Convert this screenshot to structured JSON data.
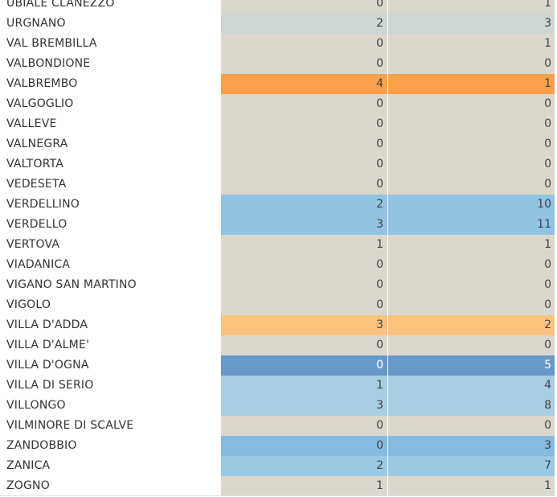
{
  "chart_data": {
    "type": "table",
    "columns": [
      "",
      "",
      ""
    ],
    "rows": [
      {
        "comune": "UBIALE CLANEZZO",
        "v1": 0,
        "v2": 1,
        "color": "#dcd7cc"
      },
      {
        "comune": "URGNANO",
        "v1": 2,
        "v2": 3,
        "color": "#cdd6d2"
      },
      {
        "comune": "VAL BREMBILLA",
        "v1": 0,
        "v2": 1,
        "color": "#dcd7cc"
      },
      {
        "comune": "VALBONDIONE",
        "v1": 0,
        "v2": 0,
        "color": "#dcd7cc"
      },
      {
        "comune": "VALBREMBO",
        "v1": 4,
        "v2": 1,
        "color": "#f9a04a"
      },
      {
        "comune": "VALGOGLIO",
        "v1": 0,
        "v2": 0,
        "color": "#dcd7cc"
      },
      {
        "comune": "VALLEVE",
        "v1": 0,
        "v2": 0,
        "color": "#dcd7cc"
      },
      {
        "comune": "VALNEGRA",
        "v1": 0,
        "v2": 0,
        "color": "#dcd7cc"
      },
      {
        "comune": "VALTORTA",
        "v1": 0,
        "v2": 0,
        "color": "#dcd7cc"
      },
      {
        "comune": "VEDESETA",
        "v1": 0,
        "v2": 0,
        "color": "#dcd7cc"
      },
      {
        "comune": "VERDELLINO",
        "v1": 2,
        "v2": 10,
        "color": "#92c3e2"
      },
      {
        "comune": "VERDELLO",
        "v1": 3,
        "v2": 11,
        "color": "#92c3e2"
      },
      {
        "comune": "VERTOVA",
        "v1": 1,
        "v2": 1,
        "color": "#dcd7cc"
      },
      {
        "comune": "VIADANICA",
        "v1": 0,
        "v2": 0,
        "color": "#dcd7cc"
      },
      {
        "comune": "VIGANO SAN MARTINO",
        "v1": 0,
        "v2": 0,
        "color": "#dcd7cc"
      },
      {
        "comune": "VIGOLO",
        "v1": 0,
        "v2": 0,
        "color": "#dcd7cc"
      },
      {
        "comune": "VILLA D'ADDA",
        "v1": 3,
        "v2": 2,
        "color": "#fdc17e"
      },
      {
        "comune": "VILLA D'ALME'",
        "v1": 0,
        "v2": 0,
        "color": "#dcd7cc"
      },
      {
        "comune": "VILLA D'OGNA",
        "v1": 0,
        "v2": 5,
        "color": "#6699c8"
      },
      {
        "comune": "VILLA DI SERIO",
        "v1": 1,
        "v2": 4,
        "color": "#a8cee2"
      },
      {
        "comune": "VILLONGO",
        "v1": 3,
        "v2": 8,
        "color": "#a8cee2"
      },
      {
        "comune": "VILMINORE DI SCALVE",
        "v1": 0,
        "v2": 0,
        "color": "#dcd7cc"
      },
      {
        "comune": "ZANDOBBIO",
        "v1": 0,
        "v2": 3,
        "color": "#85bbdf"
      },
      {
        "comune": "ZANICA",
        "v1": 2,
        "v2": 7,
        "color": "#99c8e4"
      },
      {
        "comune": "ZOGNO",
        "v1": 1,
        "v2": 1,
        "color": "#dcd7cc"
      }
    ]
  },
  "colors": {
    "neutral": "#dcd7cc",
    "text_dark": "#333333",
    "text_light": "#ffffff",
    "text_cell": "#444444"
  }
}
